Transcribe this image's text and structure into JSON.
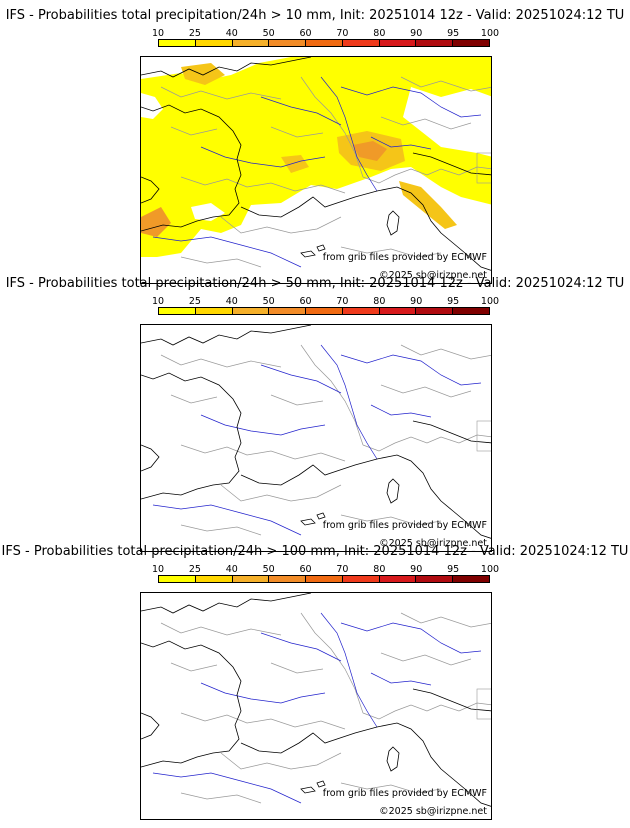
{
  "panels": [
    {
      "title": "IFS - Probabilities total precipitation/24h > 10 mm, Init: 20251014 12z - Valid: 20251024:12 TU",
      "threshold": "> 10 mm",
      "coverage": "high"
    },
    {
      "title": "IFS - Probabilities total precipitation/24h > 50 mm, Init: 20251014 12z - Valid: 20251024:12 TU",
      "threshold": "> 50 mm",
      "coverage": "none"
    },
    {
      "title": "IFS - Probabilities total precipitation/24h > 100 mm, Init: 20251014 12z - Valid: 20251024:12 TU",
      "threshold": "> 100 mm",
      "coverage": "none"
    }
  ],
  "scale": {
    "ticks": [
      "10",
      "25",
      "40",
      "50",
      "60",
      "70",
      "80",
      "90",
      "95",
      "100"
    ],
    "colors": [
      "#ffff00",
      "#ffd700",
      "#f5b02a",
      "#f28c28",
      "#f06a12",
      "#ef3a1c",
      "#d7191c",
      "#b00b10",
      "#7f0000"
    ]
  },
  "credits": {
    "source": "from grib files provided by ECMWF",
    "copyright": "©2025 sb@irizpne.net"
  },
  "map_colors": {
    "coast": "#000000",
    "rivers": "#2222cc",
    "borders": "#999999",
    "precip_main": "#ffff00",
    "precip_mid": "#f5c518",
    "precip_high": "#f09a28"
  }
}
